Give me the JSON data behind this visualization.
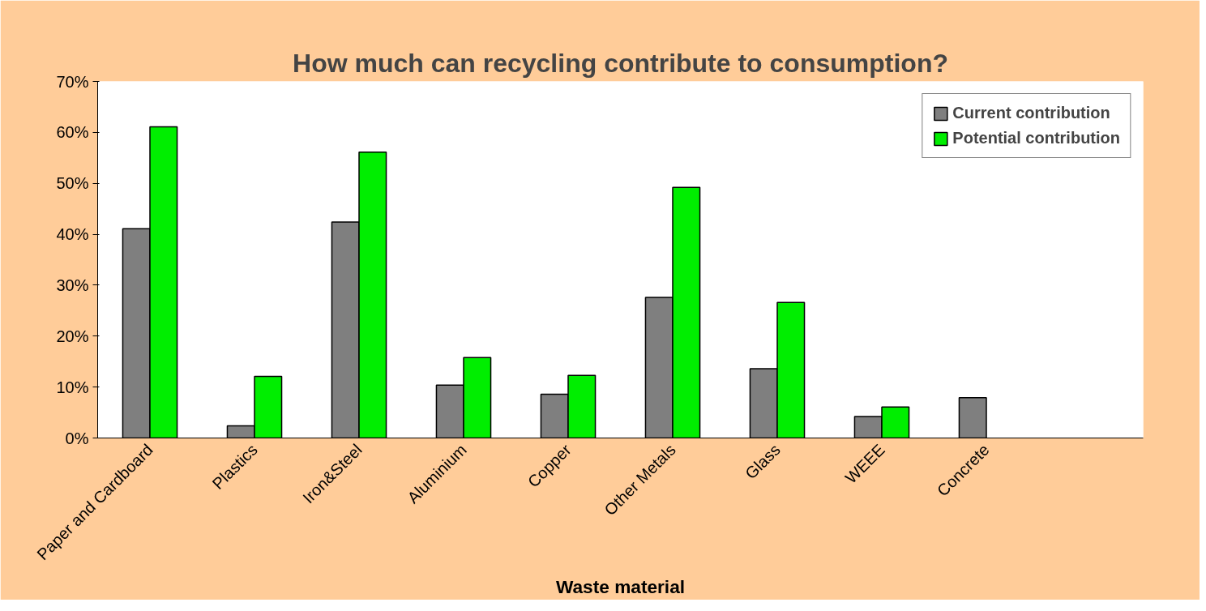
{
  "chart_data": {
    "type": "bar",
    "title": "How much can recycling contribute to consumption?",
    "xlabel": "Waste material",
    "categories": [
      "Paper and Cardboard",
      "Plastics",
      "Iron&Steel",
      "Aluminium",
      "Copper",
      "Other Metals",
      "Glass",
      "WEEE",
      "Concrete",
      null
    ],
    "series": [
      {
        "name": "Current contribution",
        "color": "#7f7f7f",
        "values": [
          41.1,
          2.4,
          42.4,
          10.4,
          8.6,
          27.6,
          13.6,
          4.2,
          7.9,
          null
        ]
      },
      {
        "name": "Potential contribution",
        "color": "#00ee00",
        "values": [
          61.1,
          12.1,
          56.1,
          15.8,
          12.3,
          49.2,
          26.6,
          6.1,
          null,
          null
        ]
      }
    ],
    "ylim": [
      0,
      70
    ],
    "yticks": [
      {
        "value": 0,
        "label": "0%"
      },
      {
        "value": 10,
        "label": "10%"
      },
      {
        "value": 20,
        "label": "20%"
      },
      {
        "value": 30,
        "label": "30%"
      },
      {
        "value": 40,
        "label": "40%"
      },
      {
        "value": 50,
        "label": "50%"
      },
      {
        "value": 60,
        "label": "60%"
      },
      {
        "value": 70,
        "label": "70%"
      }
    ],
    "grid": false,
    "legend": "top right"
  }
}
